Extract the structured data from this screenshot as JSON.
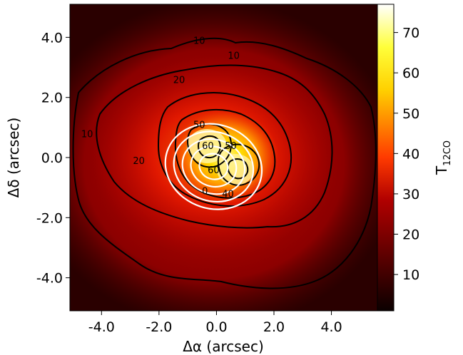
{
  "chart_data": {
    "type": "heatmap",
    "title": "",
    "xlabel": "Δα (arcsec)",
    "ylabel": "Δδ (arcsec)",
    "xlim": [
      -5.1,
      5.6
    ],
    "ylim": [
      -5.1,
      5.1
    ],
    "x_ticks": [
      -4.0,
      -2.0,
      0.0,
      2.0,
      4.0
    ],
    "x_tick_labels": [
      "-4.0",
      "-2.0",
      "0.0",
      "2.0",
      "4.0"
    ],
    "y_ticks": [
      -4.0,
      -2.0,
      0.0,
      2.0,
      4.0
    ],
    "y_tick_labels": [
      "-4.0",
      "-2.0",
      "0.0",
      "2.0",
      "4.0"
    ],
    "colorbar": {
      "label": "T",
      "label_subscript": "12CO",
      "range": [
        1,
        77
      ],
      "ticks": [
        10,
        20,
        30,
        40,
        50,
        60,
        70
      ],
      "tick_labels": [
        "10",
        "20",
        "30",
        "40",
        "50",
        "60",
        "70"
      ],
      "colormap": "hot"
    },
    "black_contours": {
      "levels": [
        10,
        20,
        30,
        40,
        50,
        60
      ],
      "labels": [
        {
          "text": "10",
          "x": -0.6,
          "y": 3.9
        },
        {
          "text": "10",
          "x": 0.6,
          "y": 3.4
        },
        {
          "text": "20",
          "x": -1.3,
          "y": 2.6
        },
        {
          "text": "20",
          "x": -2.7,
          "y": -0.1
        },
        {
          "text": "10",
          "x": -4.5,
          "y": 0.8
        },
        {
          "text": "50",
          "x": -0.6,
          "y": 1.1
        },
        {
          "text": "60",
          "x": -0.3,
          "y": 0.4
        },
        {
          "text": "50",
          "x": 0.5,
          "y": 0.4
        },
        {
          "text": "60",
          "x": -0.1,
          "y": -0.4
        },
        {
          "text": "40",
          "x": 0.4,
          "y": -1.2
        },
        {
          "text": "0",
          "x": -0.4,
          "y": -1.1
        }
      ]
    },
    "white_contours": {
      "center": [
        -0.1,
        -0.3
      ],
      "radii": [
        [
          1.7,
          1.4
        ],
        [
          1.4,
          1.15
        ],
        [
          1.1,
          0.9
        ],
        [
          0.8,
          0.66
        ],
        [
          0.5,
          0.42
        ]
      ]
    },
    "peaks": [
      {
        "x": -0.6,
        "y": 0.3,
        "value": 77
      },
      {
        "x": 0.3,
        "y": -0.4,
        "value": 72
      }
    ]
  }
}
